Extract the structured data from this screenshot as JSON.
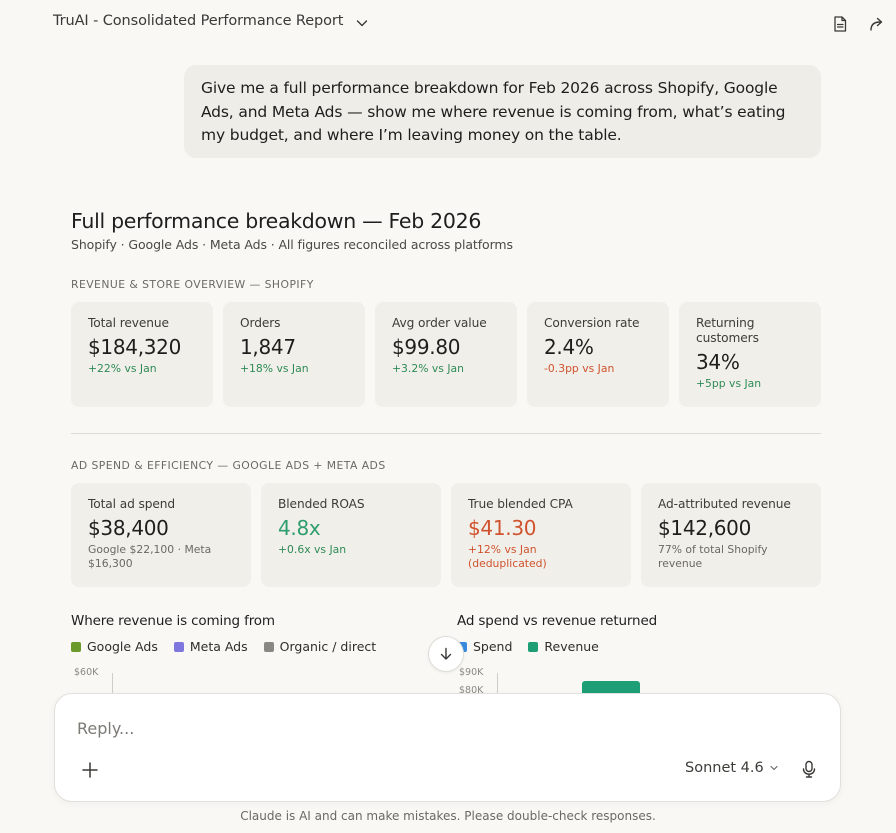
{
  "header": {
    "title": "TruAI - Consolidated Performance Report"
  },
  "user_message": "Give me a full performance breakdown for Feb 2026 across Shopify, Google Ads, and Meta Ads — show me where revenue is coming from, what’s eating my budget, and where I’m leaving money on the table.",
  "report": {
    "title": "Full performance breakdown — Feb 2026",
    "subtitle": "Shopify · Google Ads · Meta Ads · All figures reconciled across platforms",
    "section1": {
      "label": "REVENUE & STORE OVERVIEW — SHOPIFY",
      "cards": [
        {
          "label": "Total revenue",
          "value": "$184,320",
          "delta": "+22% vs Jan"
        },
        {
          "label": "Orders",
          "value": "1,847",
          "delta": "+18% vs Jan"
        },
        {
          "label": "Avg order value",
          "value": "$99.80",
          "delta": "+3.2% vs Jan"
        },
        {
          "label": "Conversion rate",
          "value": "2.4%",
          "delta": "-0.3pp vs Jan"
        },
        {
          "label": "Returning customers",
          "value": "34%",
          "delta": "+5pp vs Jan"
        }
      ]
    },
    "section2": {
      "label": "AD SPEND & EFFICIENCY — GOOGLE ADS + META ADS",
      "cards": [
        {
          "label": "Total ad spend",
          "value": "$38,400",
          "delta": "Google $22,100 · Meta $16,300"
        },
        {
          "label": "Blended ROAS",
          "value": "4.8x",
          "delta": "+0.6x vs Jan"
        },
        {
          "label": "True blended CPA",
          "value": "$41.30",
          "delta": "+12% vs Jan (deduplicated)"
        },
        {
          "label": "Ad-attributed revenue",
          "value": "$142,600",
          "delta": "77% of total Shopify revenue"
        }
      ]
    },
    "chart_left": {
      "title": "Where revenue is coming from",
      "legend": [
        "Google Ads",
        "Meta Ads",
        "Organic / direct"
      ],
      "colors": [
        "#6a9a2c",
        "#7f77dd",
        "#8a8883"
      ],
      "y_tick": "$60K"
    },
    "chart_right": {
      "title": "Ad spend vs revenue returned",
      "legend": [
        "Spend",
        "Revenue"
      ],
      "colors": [
        "#378add",
        "#1d9e75"
      ],
      "y_ticks": [
        "$90K",
        "$80K"
      ]
    }
  },
  "composer": {
    "placeholder": "Reply...",
    "model": "Sonnet 4.6"
  },
  "footer": "Claude is AI and can make mistakes. Please double-check responses.",
  "icons": {
    "chevron": "chevron-down-icon",
    "doc": "document-icon",
    "share": "share-icon",
    "scroll": "arrow-down-icon",
    "plus": "plus-icon",
    "mic": "microphone-icon"
  }
}
